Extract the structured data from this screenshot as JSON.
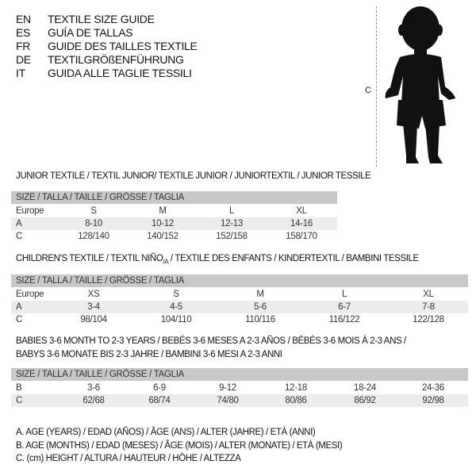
{
  "languages": [
    {
      "code": "EN",
      "text": "TEXTILE SIZE GUIDE"
    },
    {
      "code": "ES",
      "text": "GUÍA DE TALLAS"
    },
    {
      "code": "FR",
      "text": "GUIDE DES TAILLES TEXTILE"
    },
    {
      "code": "DE",
      "text": "TEXTILGRÖßENFÜHRUNG"
    },
    {
      "code": "IT",
      "text": "GUIDA ALLE TAGLIE TESSILI"
    }
  ],
  "figure": {
    "measure_label": "C",
    "icon": "child-silhouette"
  },
  "size_header": "SIZE / TALLA / TAILLE / GRÖSSE / TAGLIA",
  "junior": {
    "title": "JUNIOR TEXTILE / TEXTIL JUNIOR/ TEXTILE JUNIOR / JUNIORTEXTIL / JUNIOR TESSILE",
    "rows": [
      {
        "label": "Europe",
        "cells": [
          "S",
          "M",
          "L",
          "XL"
        ]
      },
      {
        "label": "A",
        "cells": [
          "8-10",
          "10-12",
          "12-13",
          "14-16"
        ]
      },
      {
        "label": "C",
        "cells": [
          "128/140",
          "140/152",
          "152/158",
          "158/170"
        ]
      }
    ]
  },
  "children": {
    "title_a": "CHILDREN'S TEXTILE / TEXTIL NIÑO",
    "title_sub": "/A",
    "title_b": " / TEXTILE DES ENFANTS / KINDERTEXTIL / BAMBINI TESSILE",
    "rows": [
      {
        "label": "Europe",
        "cells": [
          "XS",
          "S",
          "M",
          "L",
          "XL"
        ]
      },
      {
        "label": "A",
        "cells": [
          "3-4",
          "4-5",
          "5-6",
          "6-7",
          "7-8"
        ]
      },
      {
        "label": "C",
        "cells": [
          "98/104",
          "104/110",
          "110/116",
          "116/122",
          "122/128"
        ]
      }
    ]
  },
  "babies": {
    "title_line1": "BABIES 3-6 MONTH TO 2-3 YEARS / BEBÉS 3-6 MESES A 2-3 AÑOS / BÉBÉS 3-6 MOIS À 2-3 ANS /",
    "title_line2": "BABYS 3-6 MONATE BIS 2-3 JAHRE / BAMBINI 3-6 MESI A 2-3 ANNI",
    "rows": [
      {
        "label": "B",
        "cells": [
          "3-6",
          "6-9",
          "9-12",
          "12-18",
          "18-24",
          "24-36"
        ]
      },
      {
        "label": "C",
        "cells": [
          "62/68",
          "68/74",
          "74/80",
          "80/86",
          "86/92",
          "92/98"
        ]
      }
    ]
  },
  "legend": [
    "A. AGE (YEARS) / EDAD (AÑOS) / ÂGE (ANS) / ALTER (JAHRE) / ETÀ (ANNI)",
    "B. AGE (MONTHS) / EDAD (MESES) / ÂGE (MOIS) / ALTER (MONATE) / ETÀ (MESI)",
    "C. (cm) HEIGHT / ALTURA / HAUTEUR / HÖHE / ALTEZZA"
  ]
}
